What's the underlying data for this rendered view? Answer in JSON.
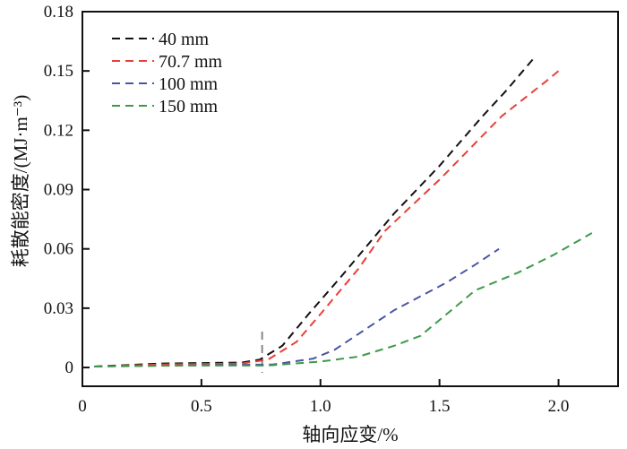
{
  "chart_data": {
    "type": "line",
    "title": "",
    "xlabel": "轴向应变/%",
    "ylabel": "耗散能密度/(MJ·m⁻³)",
    "xlim": [
      0,
      2.25
    ],
    "ylim": [
      -0.0095,
      0.18
    ],
    "xticks": [
      0,
      0.5,
      1.0,
      1.5,
      2.0
    ],
    "xtick_labels": [
      "0",
      "0.5",
      "1.0",
      "1.5",
      "2.0"
    ],
    "yticks": [
      0,
      0.03,
      0.06,
      0.09,
      0.12,
      0.15,
      0.18
    ],
    "ytick_labels": [
      "0",
      "0.03",
      "0.06",
      "0.09",
      "0.12",
      "0.15",
      "0.18"
    ],
    "grid": false,
    "legend_position": "top-left",
    "marker_line_x": 0.755,
    "series": [
      {
        "name": "40 mm",
        "color": "#111111",
        "x": [
          0.05,
          0.33,
          0.67,
          0.745,
          0.84,
          0.95,
          1.08,
          1.31,
          1.5,
          1.68,
          1.78,
          1.9
        ],
        "y": [
          0.0005,
          0.002,
          0.0025,
          0.004,
          0.011,
          0.027,
          0.045,
          0.078,
          0.102,
          0.127,
          0.14,
          0.157
        ]
      },
      {
        "name": "70.7 mm",
        "color": "#e8403a",
        "x": [
          0.05,
          0.33,
          0.67,
          0.78,
          0.9,
          1.0,
          1.16,
          1.27,
          1.5,
          1.76,
          1.95,
          2.0
        ],
        "y": [
          0.0005,
          0.0015,
          0.002,
          0.004,
          0.013,
          0.027,
          0.05,
          0.069,
          0.095,
          0.127,
          0.145,
          0.15
        ]
      },
      {
        "name": "100 mm",
        "color": "#4a55a0",
        "x": [
          0.05,
          0.4,
          0.8,
          0.97,
          1.06,
          1.16,
          1.31,
          1.42,
          1.53,
          1.65,
          1.75
        ],
        "y": [
          0.0005,
          0.001,
          0.0015,
          0.0045,
          0.009,
          0.017,
          0.029,
          0.036,
          0.043,
          0.052,
          0.06
        ]
      },
      {
        "name": "150  mm",
        "color": "#3d9a4a",
        "x": [
          0.05,
          0.4,
          0.78,
          1.0,
          1.16,
          1.31,
          1.42,
          1.53,
          1.65,
          1.83,
          1.98,
          2.14
        ],
        "y": [
          0.0005,
          0.001,
          0.001,
          0.003,
          0.0055,
          0.011,
          0.016,
          0.027,
          0.039,
          0.048,
          0.057,
          0.068
        ]
      }
    ]
  }
}
